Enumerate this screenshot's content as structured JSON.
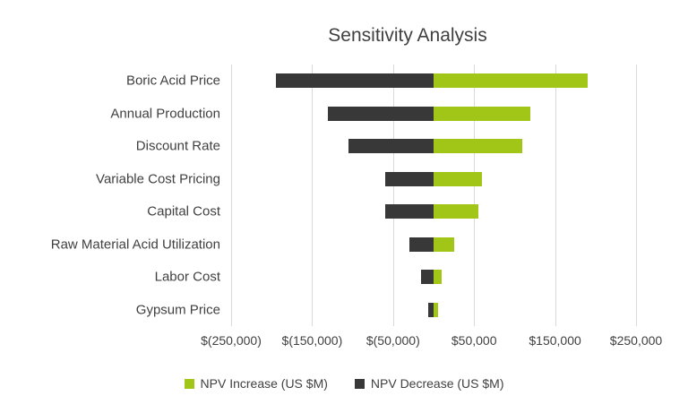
{
  "title": "Sensitivity Analysis",
  "colors": {
    "increase": "#A2C617",
    "decrease": "#383838",
    "gridline": "#D9D9D9",
    "text": "#404040",
    "background": "#FFFFFF"
  },
  "chart_data": {
    "type": "bar",
    "orientation": "horizontal",
    "subtype": "tornado",
    "title": "Sensitivity Analysis",
    "categories": [
      "Boric Acid Price",
      "Annual Production",
      "Discount Rate",
      "Variable Cost Pricing",
      "Capital Cost",
      "Raw Material Acid Utilization",
      "Labor Cost",
      "Gypsum Price"
    ],
    "series": [
      {
        "name": "NPV Increase (US $M)",
        "color": "#A2C617",
        "values": [
          190000,
          120000,
          110000,
          60000,
          55000,
          25000,
          10000,
          5000
        ]
      },
      {
        "name": "NPV Decrease (US $M)",
        "color": "#383838",
        "values": [
          -195000,
          -130000,
          -105000,
          -60000,
          -60000,
          -30000,
          -15000,
          -7000
        ]
      }
    ],
    "xlim": [
      -250000,
      250000
    ],
    "xticks": [
      -250000,
      -150000,
      -50000,
      50000,
      150000,
      250000
    ],
    "xtick_labels": [
      "$(250,000)",
      "$(150,000)",
      "$(50,000)",
      "$50,000",
      "$150,000",
      "$250,000"
    ],
    "grid": true,
    "legend_position": "bottom"
  }
}
